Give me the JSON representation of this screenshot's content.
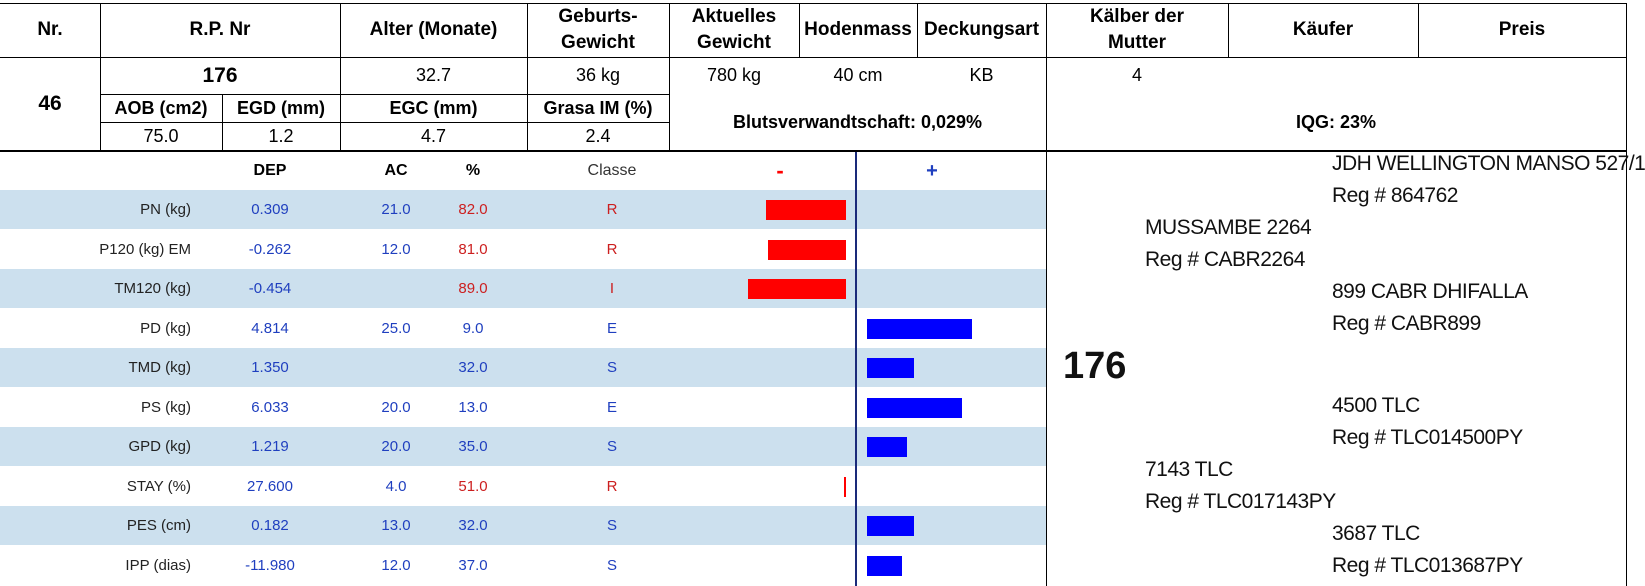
{
  "header": {
    "nr_label": "Nr.",
    "rp_label": "R.P. Nr",
    "age_label": "Alter (Monate)",
    "birth_weight_label_1": "Geburts-",
    "birth_weight_label_2": "Gewicht",
    "current_weight_label_1": "Aktuelles",
    "current_weight_label_2": "Gewicht",
    "testicle_label": "Hodenmass",
    "breeding_label": "Deckungsart",
    "calves_label_1": "Kälber der",
    "calves_label_2": "Mutter",
    "buyer_label": "Käufer",
    "price_label": "Preis"
  },
  "animal": {
    "nr": "46",
    "rp": "176",
    "age": "32.7",
    "birth_weight": "36 kg",
    "current_weight": "780 kg",
    "testicle": "40 cm",
    "breeding": "KB",
    "calves": "4",
    "buyer": "",
    "price": ""
  },
  "carcass": {
    "aob_label": "AOB (cm2)",
    "egd_label": "EGD (mm)",
    "egc_label": "EGC (mm)",
    "grasa_label": "Grasa IM (%)",
    "aob": "75.0",
    "egd": "1.2",
    "egc": "4.7",
    "grasa": "2.4",
    "kinship": "Blutsverwandtschaft: 0,029%",
    "iqg": "IQG: 23%"
  },
  "epd_header": {
    "dep": "DEP",
    "ac": "AC",
    "pct": "%",
    "classe": "Classe",
    "minus": "-",
    "plus": "+"
  },
  "epd_rows": [
    {
      "trait": "PN (kg)",
      "dep": "0.309",
      "ac": "21.0",
      "pct": "82.0",
      "cls": "R",
      "color": "red",
      "bar": -80
    },
    {
      "trait": "P120 (kg) EM",
      "dep": "-0.262",
      "ac": "12.0",
      "pct": "81.0",
      "cls": "R",
      "color": "red",
      "bar": -78
    },
    {
      "trait": "TM120 (kg)",
      "dep": "-0.454",
      "ac": "",
      "pct": "89.0",
      "cls": "I",
      "color": "red",
      "bar": -98
    },
    {
      "trait": "PD (kg)",
      "dep": "4.814",
      "ac": "25.0",
      "pct": "9.0",
      "cls": "E",
      "color": "blue",
      "bar": 105
    },
    {
      "trait": "TMD (kg)",
      "dep": "1.350",
      "ac": "",
      "pct": "32.0",
      "cls": "S",
      "color": "blue",
      "bar": 47
    },
    {
      "trait": "PS (kg)",
      "dep": "6.033",
      "ac": "20.0",
      "pct": "13.0",
      "cls": "E",
      "color": "blue",
      "bar": 95
    },
    {
      "trait": "GPD (kg)",
      "dep": "1.219",
      "ac": "20.0",
      "pct": "35.0",
      "cls": "S",
      "color": "blue",
      "bar": 40
    },
    {
      "trait": "STAY (%)",
      "dep": "27.600",
      "ac": "4.0",
      "pct": "51.0",
      "cls": "R",
      "color": "red",
      "bar": -2
    },
    {
      "trait": "PES (cm)",
      "dep": "0.182",
      "ac": "13.0",
      "pct": "32.0",
      "cls": "S",
      "color": "blue",
      "bar": 47
    },
    {
      "trait": "IPP (dias)",
      "dep": "-11.980",
      "ac": "12.0",
      "pct": "37.0",
      "cls": "S",
      "color": "blue",
      "bar": 35
    }
  ],
  "pedigree": {
    "animal": "176",
    "sire": {
      "name": "MUSSAMBE 2264",
      "reg": "Reg # CABR2264"
    },
    "sire_sire": {
      "name": "JDH WELLINGTON MANSO 527/1",
      "reg": "Reg # 864762"
    },
    "sire_dam": {
      "name": "899 CABR DHIFALLA",
      "reg": "Reg # CABR899"
    },
    "dam": {
      "name": "7143 TLC",
      "reg": "Reg # TLC017143PY"
    },
    "dam_sire": {
      "name": "4500 TLC",
      "reg": "Reg # TLC014500PY"
    },
    "dam_dam": {
      "name": "3687 TLC",
      "reg": "Reg # TLC013687PY"
    }
  },
  "colors": {
    "shade": "#cce0ee",
    "bar_neg": "#ff0000",
    "bar_pos": "#0000ff",
    "text_blue": "#1f3fbf",
    "text_red": "#cc1f1f"
  }
}
